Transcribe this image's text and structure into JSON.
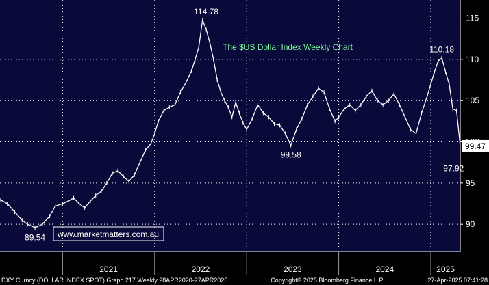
{
  "chart_data": {
    "type": "line",
    "title": "The $US Dollar Index Weekly Chart",
    "ylim": [
      86.7,
      117.2
    ],
    "y_ticks": [
      90,
      95,
      100,
      105,
      110,
      115
    ],
    "x_tick_labels": [
      "2021",
      "2022",
      "2023",
      "2024",
      "2025"
    ],
    "x_range": [
      2020.32,
      2025.32
    ],
    "series": [
      {
        "x": [
          2020.32,
          2020.4,
          2020.48,
          2020.56,
          2020.62,
          2020.7,
          2020.78,
          2020.86,
          2020.92,
          2021.0,
          2021.06,
          2021.12,
          2021.18,
          2021.24,
          2021.3,
          2021.36,
          2021.42,
          2021.48,
          2021.54,
          2021.6,
          2021.66,
          2021.72,
          2021.78,
          2021.84,
          2021.9,
          2021.96,
          2022.0,
          2022.04,
          2022.1,
          2022.16,
          2022.22,
          2022.28,
          2022.34,
          2022.4,
          2022.44,
          2022.48,
          2022.52,
          2022.56,
          2022.6,
          2022.64,
          2022.68,
          2022.72,
          2022.76,
          2022.8,
          2022.84,
          2022.88,
          2022.92,
          2022.96,
          2023.0,
          2023.06,
          2023.12,
          2023.18,
          2023.24,
          2023.3,
          2023.36,
          2023.42,
          2023.48,
          2023.54,
          2023.6,
          2023.66,
          2023.72,
          2023.78,
          2023.84,
          2023.9,
          2023.96,
          2024.0,
          2024.06,
          2024.12,
          2024.18,
          2024.24,
          2024.3,
          2024.36,
          2024.42,
          2024.48,
          2024.54,
          2024.6,
          2024.66,
          2024.72,
          2024.78,
          2024.84,
          2024.9,
          2024.96,
          2025.0,
          2025.04,
          2025.08,
          2025.12,
          2025.16,
          2025.2,
          2025.24,
          2025.28,
          2025.32
        ],
        "y": [
          93.0,
          92.5,
          91.5,
          90.5,
          90.0,
          89.6,
          90.0,
          91.0,
          92.2,
          92.5,
          92.8,
          93.2,
          92.5,
          92.0,
          92.8,
          93.5,
          94.0,
          95.0,
          96.2,
          96.5,
          95.8,
          95.2,
          96.0,
          97.5,
          99.0,
          99.8,
          101.0,
          102.5,
          103.8,
          104.2,
          104.5,
          106.0,
          107.2,
          108.6,
          110.0,
          111.5,
          114.78,
          113.6,
          112.0,
          110.0,
          107.5,
          106.0,
          105.0,
          104.2,
          103.0,
          104.8,
          103.5,
          102.3,
          101.5,
          102.8,
          104.5,
          103.5,
          103.0,
          102.2,
          102.0,
          101.0,
          99.58,
          101.5,
          102.8,
          104.5,
          105.5,
          106.5,
          106.0,
          104.0,
          102.5,
          103.0,
          104.0,
          104.5,
          103.8,
          104.5,
          105.5,
          106.2,
          105.0,
          104.5,
          105.0,
          105.8,
          104.5,
          103.0,
          101.5,
          101.0,
          103.5,
          105.5,
          107.0,
          108.5,
          109.8,
          110.18,
          108.5,
          107.0,
          104.0,
          103.8,
          99.47
        ]
      }
    ],
    "annotations": [
      {
        "text": "114.78",
        "x": 2022.56,
        "y": 114.78,
        "position": "above"
      },
      {
        "text": "110.18",
        "x": 2025.12,
        "y": 110.18,
        "position": "above"
      },
      {
        "text": "99.58",
        "x": 2023.48,
        "y": 99.58,
        "position": "below"
      },
      {
        "text": "89.54",
        "x": 2020.7,
        "y": 89.54,
        "position": "below"
      },
      {
        "text": "97.92",
        "x": 2025.3,
        "y": 97.92,
        "position": "below"
      }
    ],
    "last_value": "99.47",
    "grid": true
  },
  "watermark": "www.marketmatters.com.au",
  "footer": {
    "left": "DXY Curncy (DOLLAR INDEX SPOT) Graph 217  Weekly 28APR2020-27APR2025",
    "center": "Copyright© 2025 Bloomberg Finance L.P.",
    "right": "27-Apr-2025 07:41:28"
  },
  "colors": {
    "plot_background": "#0a0a3a",
    "panel_background": "#000000",
    "line": "#ffffff",
    "grid": "#ffffff",
    "title": "#7CFC9A",
    "watermark_border": "#ffffff",
    "last_value_box": "#ffffff"
  }
}
